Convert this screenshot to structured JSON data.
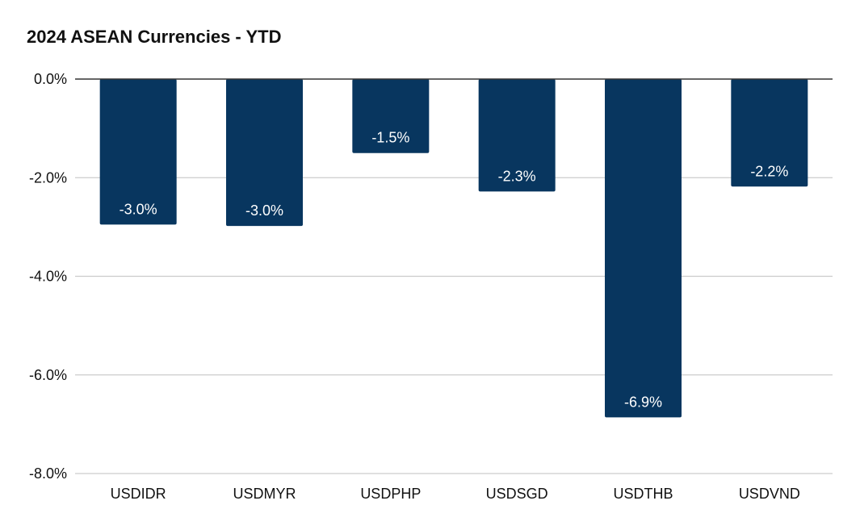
{
  "chart_data": {
    "type": "bar",
    "title": "2024 ASEAN Currencies - YTD",
    "categories": [
      "USDIDR",
      "USDMYR",
      "USDPHP",
      "USDSGD",
      "USDTHB",
      "USDVND"
    ],
    "values": [
      -2.95,
      -2.98,
      -1.5,
      -2.28,
      -6.86,
      -2.18
    ],
    "data_labels": [
      "-3.0%",
      "-3.0%",
      "-1.5%",
      "-2.3%",
      "-6.9%",
      "-2.2%"
    ],
    "ylim": [
      -8,
      0
    ],
    "yticks": [
      0,
      -2,
      -4,
      -6,
      -8
    ],
    "ytick_labels": [
      "0.0%",
      "-2.0%",
      "-4.0%",
      "-6.0%",
      "-8.0%"
    ],
    "xlabel": "",
    "ylabel": "",
    "grid": true,
    "legend": "none",
    "colors": {
      "bar": "#08365f",
      "grid": "#cccccc",
      "zero_line": "#333333",
      "text": "#111111",
      "label_text": "#ffffff"
    }
  }
}
